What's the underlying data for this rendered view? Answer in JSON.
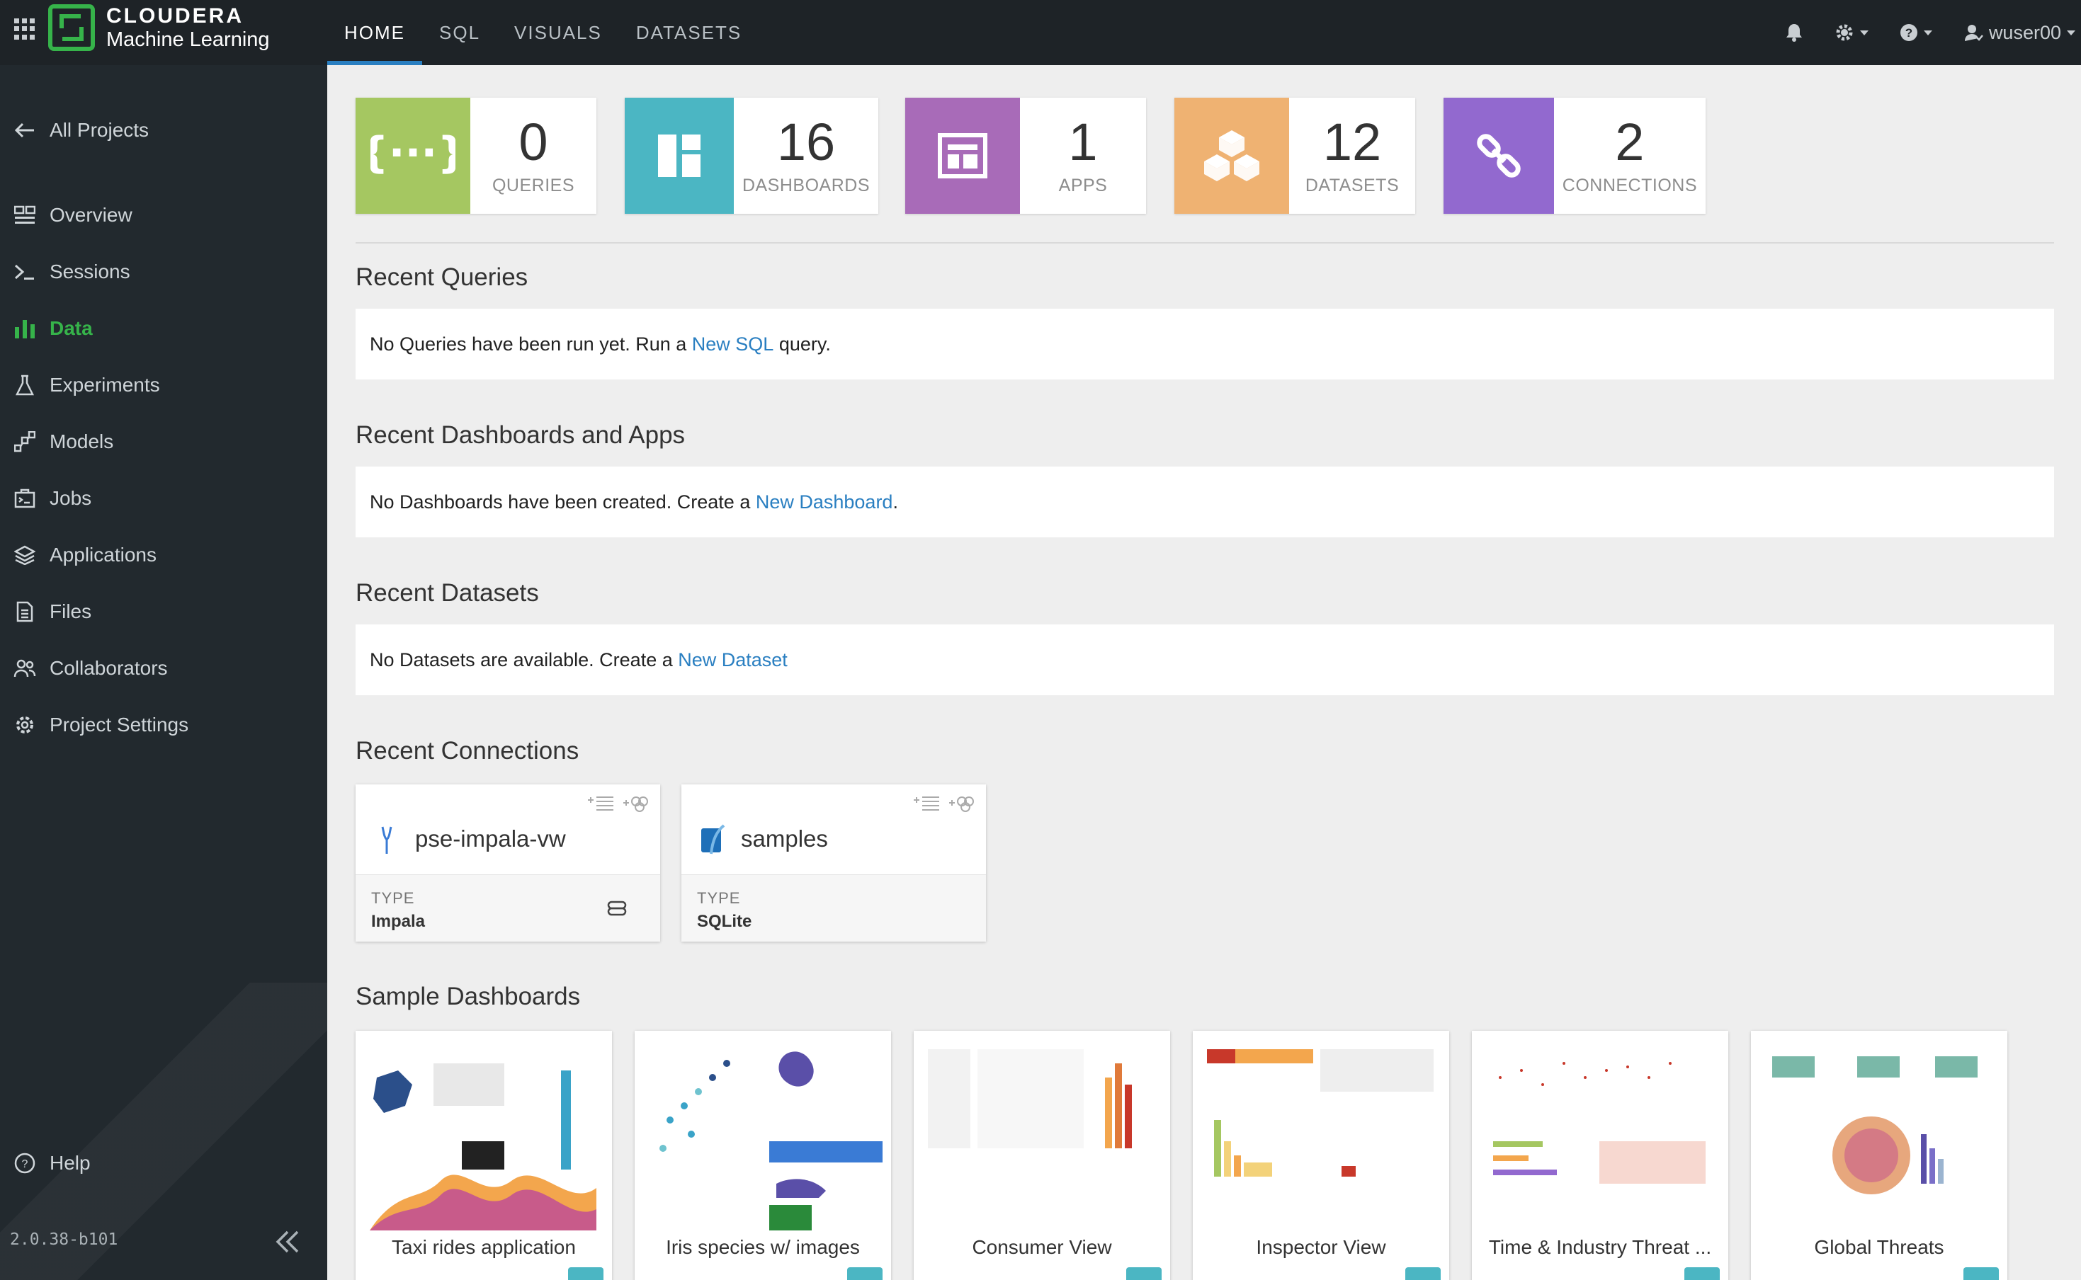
{
  "brand": {
    "line1": "CLOUDERA",
    "line2": "Machine Learning"
  },
  "topnav": {
    "tabs": [
      "HOME",
      "SQL",
      "VISUALS",
      "DATASETS"
    ],
    "active_tab": "HOME"
  },
  "topright": {
    "user": "wuser00",
    "icons": [
      "bell-icon",
      "gear-icon",
      "help-icon",
      "user-icon"
    ]
  },
  "sidebar": {
    "back": "All Projects",
    "items": [
      {
        "label": "Overview",
        "icon": "overview-icon"
      },
      {
        "label": "Sessions",
        "icon": "terminal-icon"
      },
      {
        "label": "Data",
        "icon": "bar-chart-icon",
        "active": true
      },
      {
        "label": "Experiments",
        "icon": "flask-icon"
      },
      {
        "label": "Models",
        "icon": "models-icon"
      },
      {
        "label": "Jobs",
        "icon": "jobs-icon"
      },
      {
        "label": "Applications",
        "icon": "layers-icon"
      },
      {
        "label": "Files",
        "icon": "file-icon"
      },
      {
        "label": "Collaborators",
        "icon": "people-icon"
      },
      {
        "label": "Project Settings",
        "icon": "gear-icon"
      }
    ],
    "help": "Help",
    "version": "2.0.38-b101"
  },
  "stats": [
    {
      "value": "0",
      "label": "QUERIES",
      "color": "#a5c761",
      "icon": "braces-icon"
    },
    {
      "value": "16",
      "label": "DASHBOARDS",
      "color": "#4bb6c3",
      "icon": "dashboard-icon"
    },
    {
      "value": "1",
      "label": "APPS",
      "color": "#a86bb8",
      "icon": "app-icon"
    },
    {
      "value": "12",
      "label": "DATASETS",
      "color": "#efb272",
      "icon": "cubes-icon"
    },
    {
      "value": "2",
      "label": "CONNECTIONS",
      "color": "#9269cf",
      "icon": "link-icon"
    }
  ],
  "sections": {
    "queries": {
      "title": "Recent Queries",
      "pre": "No Queries have been run yet. Run a ",
      "link": "New SQL",
      "post": " query."
    },
    "dashboards": {
      "title": "Recent Dashboards and Apps",
      "pre": "No Dashboards have been created. Create a ",
      "link": "New Dashboard",
      "post": "."
    },
    "datasets": {
      "title": "Recent Datasets",
      "pre": "No Datasets are available. Create a ",
      "link": "New Dataset",
      "post": ""
    },
    "connections": {
      "title": "Recent Connections"
    },
    "samples": {
      "title": "Sample Dashboards"
    }
  },
  "connections": [
    {
      "name": "pse-impala-vw",
      "type_label": "TYPE",
      "type": "Impala",
      "icon": "impala-icon"
    },
    {
      "name": "samples",
      "type_label": "TYPE",
      "type": "SQLite",
      "icon": "sqlite-icon"
    }
  ],
  "sample_dashboards": [
    "Taxi rides application",
    "Iris species w/ images",
    "Consumer View",
    "Inspector View",
    "Time & Industry Threat ...",
    "Global Threats"
  ],
  "colors": {
    "accent": "#2a7fc1",
    "brand_green": "#36b34a",
    "sidebar_bg": "#22292e",
    "topbar_bg": "#1e2327"
  }
}
